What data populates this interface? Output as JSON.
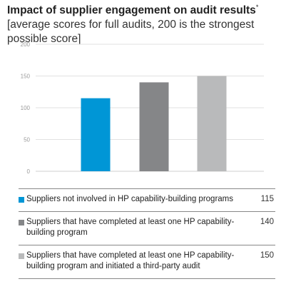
{
  "chart_data": {
    "type": "bar",
    "title": "Impact of supplier engagement on audit results",
    "title_marker": "*",
    "subtitle": "[average scores for full audits, 200 is the strongest possible score]",
    "ylim": [
      0,
      200
    ],
    "yticks": [
      "0",
      "50",
      "100",
      "150",
      "200"
    ],
    "grid": true,
    "categories": [
      "Suppliers not involved in HP capability-building programs",
      "Suppliers that have completed at least one HP capability-building program",
      "Suppliers that have completed at least one HP capability-building program and initiated a third-party audit"
    ],
    "values": [
      115,
      140,
      150
    ],
    "value_labels": [
      "115",
      "140",
      "150"
    ],
    "colors": [
      "#0096d6",
      "#858688",
      "#b9babb"
    ]
  }
}
